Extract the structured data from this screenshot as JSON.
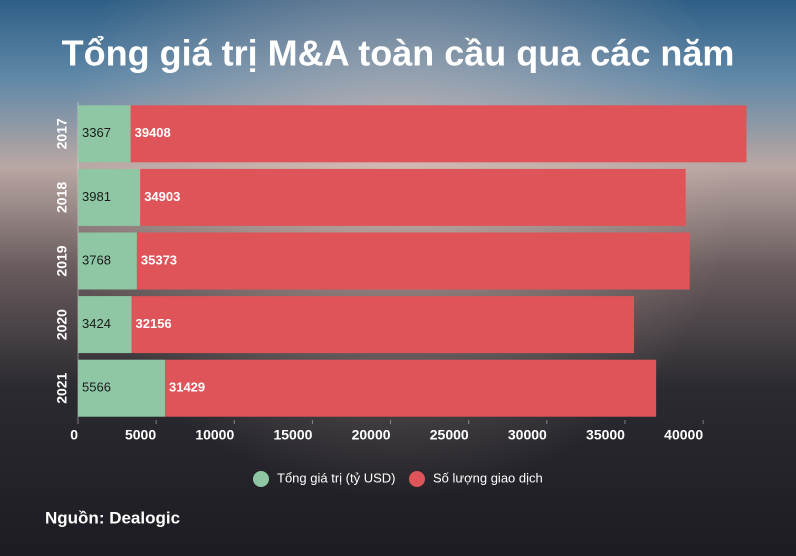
{
  "chart_data": {
    "type": "stacked-bar-horizontal",
    "title": "Tổng giá trị M&A toàn cầu qua các năm",
    "categories": [
      "2017",
      "2018",
      "2019",
      "2020",
      "2021"
    ],
    "series": [
      {
        "name": "Tổng giá trị (tỷ USD)",
        "color": "#8fc7a5",
        "values": [
          3367,
          3981,
          3768,
          3424,
          5566
        ]
      },
      {
        "name": "Số lượng giao dịch",
        "color": "#df5458",
        "values": [
          39408,
          34903,
          35373,
          32156,
          31429
        ]
      }
    ],
    "xlim": [
      0,
      43000
    ],
    "xticks": [
      0,
      5000,
      10000,
      15000,
      20000,
      25000,
      30000,
      35000,
      40000
    ],
    "source": "Nguồn: Dealogic"
  }
}
